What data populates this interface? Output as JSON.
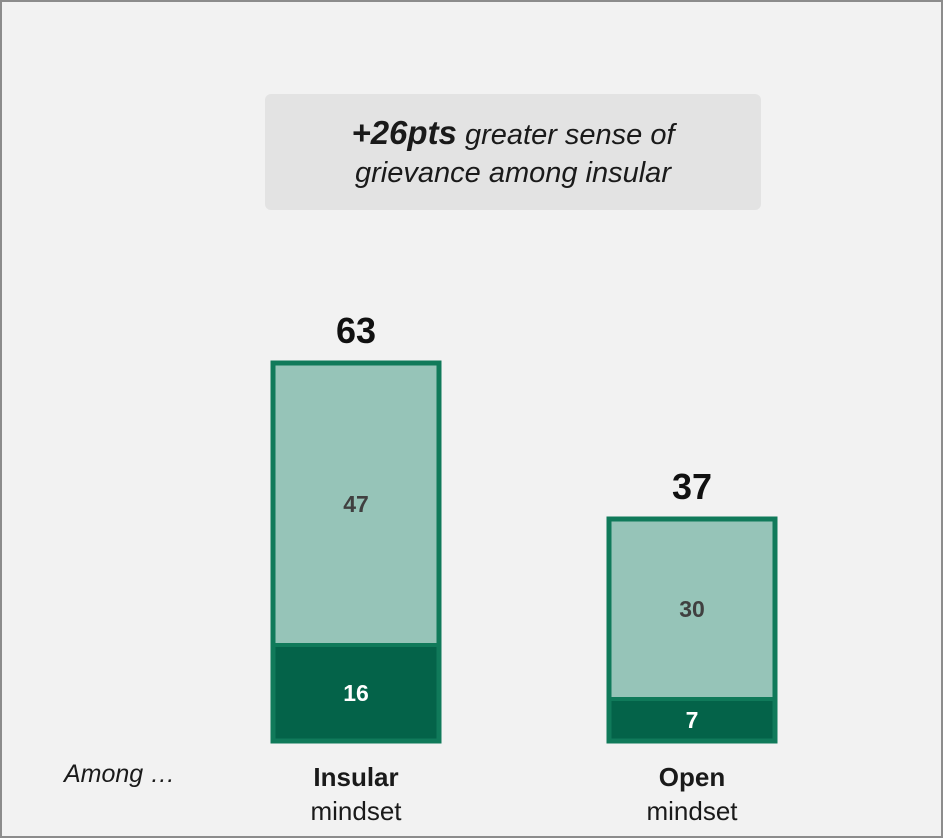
{
  "callout": {
    "highlight": "+26pts",
    "line1_rest": "greater sense of",
    "line2": "grievance among insular"
  },
  "among_label": "Among …",
  "categories": [
    {
      "name": "Insular",
      "sub": "mindset"
    },
    {
      "name": "Open",
      "sub": "mindset"
    }
  ],
  "chart_data": {
    "type": "bar",
    "stacked": true,
    "categories": [
      "Insular mindset",
      "Open mindset"
    ],
    "series": [
      {
        "values": [
          16,
          7
        ],
        "color": "#046349",
        "label_color": "#ffffff"
      },
      {
        "values": [
          47,
          30
        ],
        "color": "#96c4b8",
        "label_color": "#404040"
      }
    ],
    "totals": [
      63,
      37
    ],
    "border_color": "#107a5a",
    "title": "",
    "xlabel": "",
    "ylabel": "",
    "ylim": [
      0,
      63
    ]
  }
}
